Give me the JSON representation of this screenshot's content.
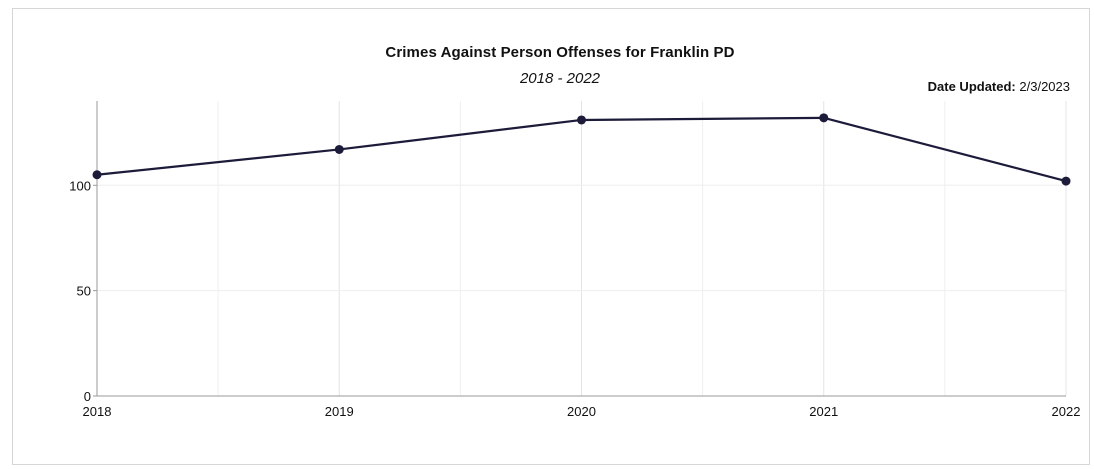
{
  "chart_data": {
    "type": "line",
    "title": "Crimes Against Person Offenses for Franklin PD",
    "subtitle": "2018 - 2022",
    "date_updated_label": "Date Updated:",
    "date_updated_value": "2/3/2023",
    "x": [
      "2018",
      "2019",
      "2020",
      "2021",
      "2022"
    ],
    "series": [
      {
        "values": [
          105,
          117,
          131,
          132,
          102
        ],
        "color": "#1c1b3a"
      }
    ],
    "yticks": [
      0,
      50,
      100
    ],
    "ylim": [
      0,
      140
    ],
    "xlabel": "",
    "ylabel": "",
    "grid": true,
    "legend": "none"
  }
}
